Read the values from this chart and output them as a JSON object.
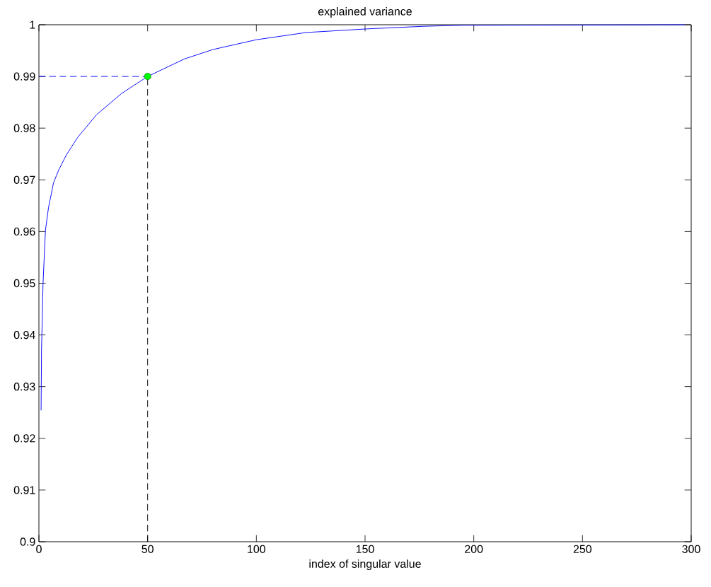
{
  "chart_data": {
    "type": "line",
    "title": "explained variance",
    "xlabel": "index of singular value",
    "xlim": [
      0,
      300
    ],
    "xticks": [
      0,
      50,
      100,
      150,
      200,
      250,
      300
    ],
    "ylim": [
      0.9,
      1
    ],
    "yticks": [
      0.9,
      0.91,
      0.92,
      0.93,
      0.94,
      0.95,
      0.96,
      0.97,
      0.98,
      0.99,
      1
    ],
    "grid": false,
    "ref_lines": [
      {
        "axis": "y",
        "value": 0.99,
        "color": "#0000ff",
        "line_style": "dashed"
      },
      {
        "axis": "x",
        "value": 50,
        "color": "#000000",
        "line_style": "dashed"
      }
    ],
    "series": [
      {
        "color": "#0000ff",
        "line_style": "solid",
        "marker": "none",
        "x": [
          1,
          1.2,
          1.9,
          3,
          4.4,
          6.7,
          9.1,
          12.6,
          17.8,
          26.5,
          38,
          50,
          67,
          80,
          100,
          123,
          151,
          177,
          195,
          297
        ],
        "values": [
          0.9254,
          0.9372,
          0.95,
          0.9602,
          0.9646,
          0.9694,
          0.9719,
          0.9748,
          0.9782,
          0.9826,
          0.9867,
          0.99,
          0.9934,
          0.9952,
          0.9971,
          0.9985,
          0.9992,
          0.9997,
          0.9999,
          1
        ]
      },
      {
        "type": "scatter",
        "color": "#00ff00",
        "marker": "circle",
        "x": [
          50
        ],
        "values": [
          0.99
        ]
      }
    ]
  }
}
